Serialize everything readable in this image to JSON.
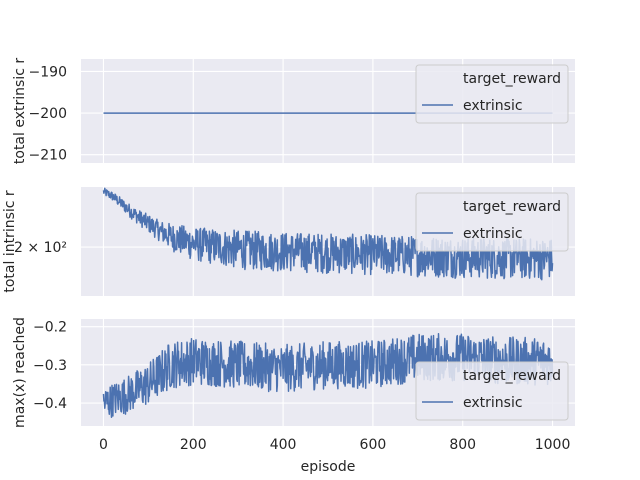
{
  "chart_data": [
    {
      "type": "line",
      "ylabel": "total extrinsic r",
      "ylim": [
        -212,
        -187
      ],
      "yticks": [
        -190,
        -200,
        -210
      ],
      "ytick_labels": [
        "−190",
        "−200",
        "−210"
      ],
      "xlim": [
        -50,
        1050
      ],
      "xticks": [
        0,
        200,
        400,
        600,
        800,
        1000
      ],
      "grid": true,
      "legend": {
        "placement": "top-right",
        "title": "target_reward",
        "entries": [
          "extrinsic"
        ]
      },
      "series": [
        {
          "name": "extrinsic",
          "x": [
            0,
            1000
          ],
          "y": [
            -200,
            -200
          ]
        }
      ]
    },
    {
      "type": "line",
      "ylabel": "total intrinsic r",
      "ytick_labels": [
        "2 × 10²"
      ],
      "ytick_values": [
        200
      ],
      "ylim": [
        140,
        310
      ],
      "yscale": "log",
      "xlim": [
        -50,
        1050
      ],
      "xticks": [
        0,
        200,
        400,
        600,
        800,
        1000
      ],
      "grid": true,
      "legend": {
        "placement": "top-right",
        "title": "target_reward",
        "entries": [
          "extrinsic"
        ]
      },
      "series": [
        {
          "name": "extrinsic",
          "x": [
            0,
            20,
            40,
            60,
            80,
            100,
            120,
            140,
            160,
            200,
            300,
            400,
            500,
            600,
            700,
            800,
            900,
            1000
          ],
          "y": [
            300,
            290,
            275,
            260,
            248,
            238,
            228,
            220,
            214,
            206,
            198,
            195,
            193,
            191,
            189,
            187,
            186,
            185
          ],
          "noise": [
            6,
            7,
            8,
            9,
            10,
            11,
            12,
            14,
            16,
            18,
            20,
            20,
            20,
            20,
            20,
            20,
            20,
            20
          ]
        }
      ]
    },
    {
      "type": "line",
      "ylabel": "max(x) reached",
      "xlabel": "episode",
      "ylim": [
        -0.46,
        -0.18
      ],
      "yticks": [
        -0.2,
        -0.3,
        -0.4
      ],
      "ytick_labels": [
        "−0.2",
        "−0.3",
        "−0.4"
      ],
      "xlim": [
        -50,
        1050
      ],
      "xticks": [
        0,
        200,
        400,
        600,
        800,
        1000
      ],
      "xtick_labels": [
        "0",
        "200",
        "400",
        "600",
        "800",
        "1000"
      ],
      "grid": true,
      "legend": {
        "placement": "bottom-right",
        "title": "target_reward",
        "entries": [
          "extrinsic"
        ]
      },
      "series": [
        {
          "name": "extrinsic",
          "x": [
            0,
            50,
            100,
            150,
            200,
            300,
            400,
            500,
            600,
            700,
            800,
            900,
            1000
          ],
          "y": [
            -0.4,
            -0.38,
            -0.35,
            -0.3,
            -0.29,
            -0.3,
            -0.31,
            -0.3,
            -0.3,
            -0.28,
            -0.28,
            -0.29,
            -0.29
          ],
          "noise": [
            0.03,
            0.035,
            0.04,
            0.045,
            0.045,
            0.045,
            0.045,
            0.045,
            0.045,
            0.045,
            0.045,
            0.045,
            0.045
          ]
        }
      ]
    }
  ]
}
